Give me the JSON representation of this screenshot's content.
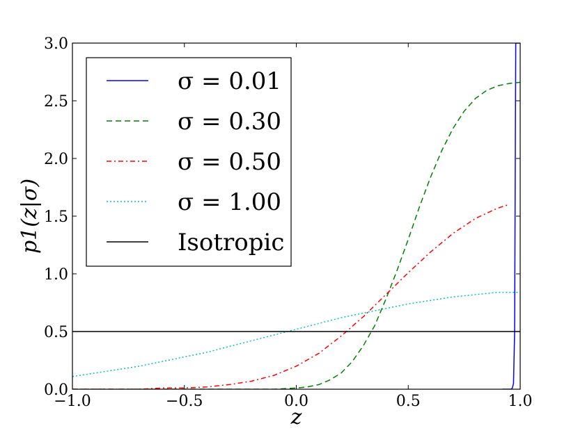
{
  "chart_data": {
    "type": "line",
    "xlabel": "z",
    "ylabel": "p1(z|σ)",
    "xlim": [
      -1.0,
      1.0
    ],
    "ylim": [
      0.0,
      3.0
    ],
    "x_ticks": [
      "−1.0",
      "−0.5",
      "0.0",
      "0.5",
      "1.0"
    ],
    "y_ticks": [
      "0.0",
      "0.5",
      "1.0",
      "1.5",
      "2.0",
      "2.5",
      "3.0"
    ],
    "grid": false,
    "legend_position": "upper-left",
    "series": [
      {
        "name": "σ = 0.01",
        "color": "#0000ff",
        "style": "solid",
        "x": [
          0.92,
          0.93,
          0.94,
          0.945,
          0.95,
          0.955,
          0.96,
          0.965,
          0.97,
          0.975,
          0.98,
          0.99,
          1.0
        ],
        "y": [
          0.0,
          0.0,
          0.0,
          0.0,
          0.0,
          0.0,
          0.0,
          0.01,
          0.05,
          0.5,
          3.0,
          3.0,
          3.0
        ]
      },
      {
        "name": "σ = 0.30",
        "color": "#008000",
        "style": "dashed",
        "x": [
          -1.0,
          -0.9,
          -0.8,
          -0.7,
          -0.6,
          -0.5,
          -0.4,
          -0.3,
          -0.2,
          -0.1,
          0.0,
          0.05,
          0.1,
          0.15,
          0.2,
          0.25,
          0.3,
          0.35,
          0.4,
          0.45,
          0.5,
          0.55,
          0.6,
          0.65,
          0.7,
          0.75,
          0.8,
          0.85,
          0.9,
          0.95,
          1.0
        ],
        "y": [
          0.0,
          0.0,
          0.0,
          0.0,
          0.0,
          0.0,
          0.0,
          0.0,
          0.0,
          0.0,
          0.01,
          0.02,
          0.04,
          0.08,
          0.14,
          0.24,
          0.38,
          0.55,
          0.78,
          1.03,
          1.3,
          1.58,
          1.84,
          2.07,
          2.26,
          2.41,
          2.52,
          2.59,
          2.63,
          2.65,
          2.66
        ]
      },
      {
        "name": "σ = 0.50",
        "color": "#ff0000",
        "style": "dashdot",
        "x": [
          -1.0,
          -0.9,
          -0.8,
          -0.7,
          -0.6,
          -0.5,
          -0.4,
          -0.3,
          -0.2,
          -0.1,
          0.0,
          0.1,
          0.2,
          0.3,
          0.4,
          0.5,
          0.6,
          0.7,
          0.8,
          0.9,
          0.95
        ],
        "y": [
          0.0,
          0.0,
          0.0,
          0.0,
          0.01,
          0.01,
          0.02,
          0.04,
          0.07,
          0.12,
          0.2,
          0.31,
          0.46,
          0.63,
          0.82,
          1.01,
          1.19,
          1.35,
          1.48,
          1.57,
          1.6
        ]
      },
      {
        "name": "σ = 1.00",
        "color": "#00bfbf",
        "style": "dotted",
        "x": [
          -1.0,
          -0.9,
          -0.8,
          -0.7,
          -0.6,
          -0.5,
          -0.4,
          -0.3,
          -0.2,
          -0.1,
          0.0,
          0.1,
          0.2,
          0.3,
          0.4,
          0.5,
          0.6,
          0.7,
          0.8,
          0.9,
          1.0
        ],
        "y": [
          0.11,
          0.14,
          0.17,
          0.2,
          0.24,
          0.28,
          0.32,
          0.37,
          0.42,
          0.47,
          0.52,
          0.57,
          0.62,
          0.66,
          0.7,
          0.74,
          0.77,
          0.8,
          0.82,
          0.84,
          0.84
        ]
      },
      {
        "name": "Isotropic",
        "color": "#000000",
        "style": "solid",
        "x": [
          -1.0,
          1.0
        ],
        "y": [
          0.5,
          0.5
        ]
      }
    ]
  }
}
